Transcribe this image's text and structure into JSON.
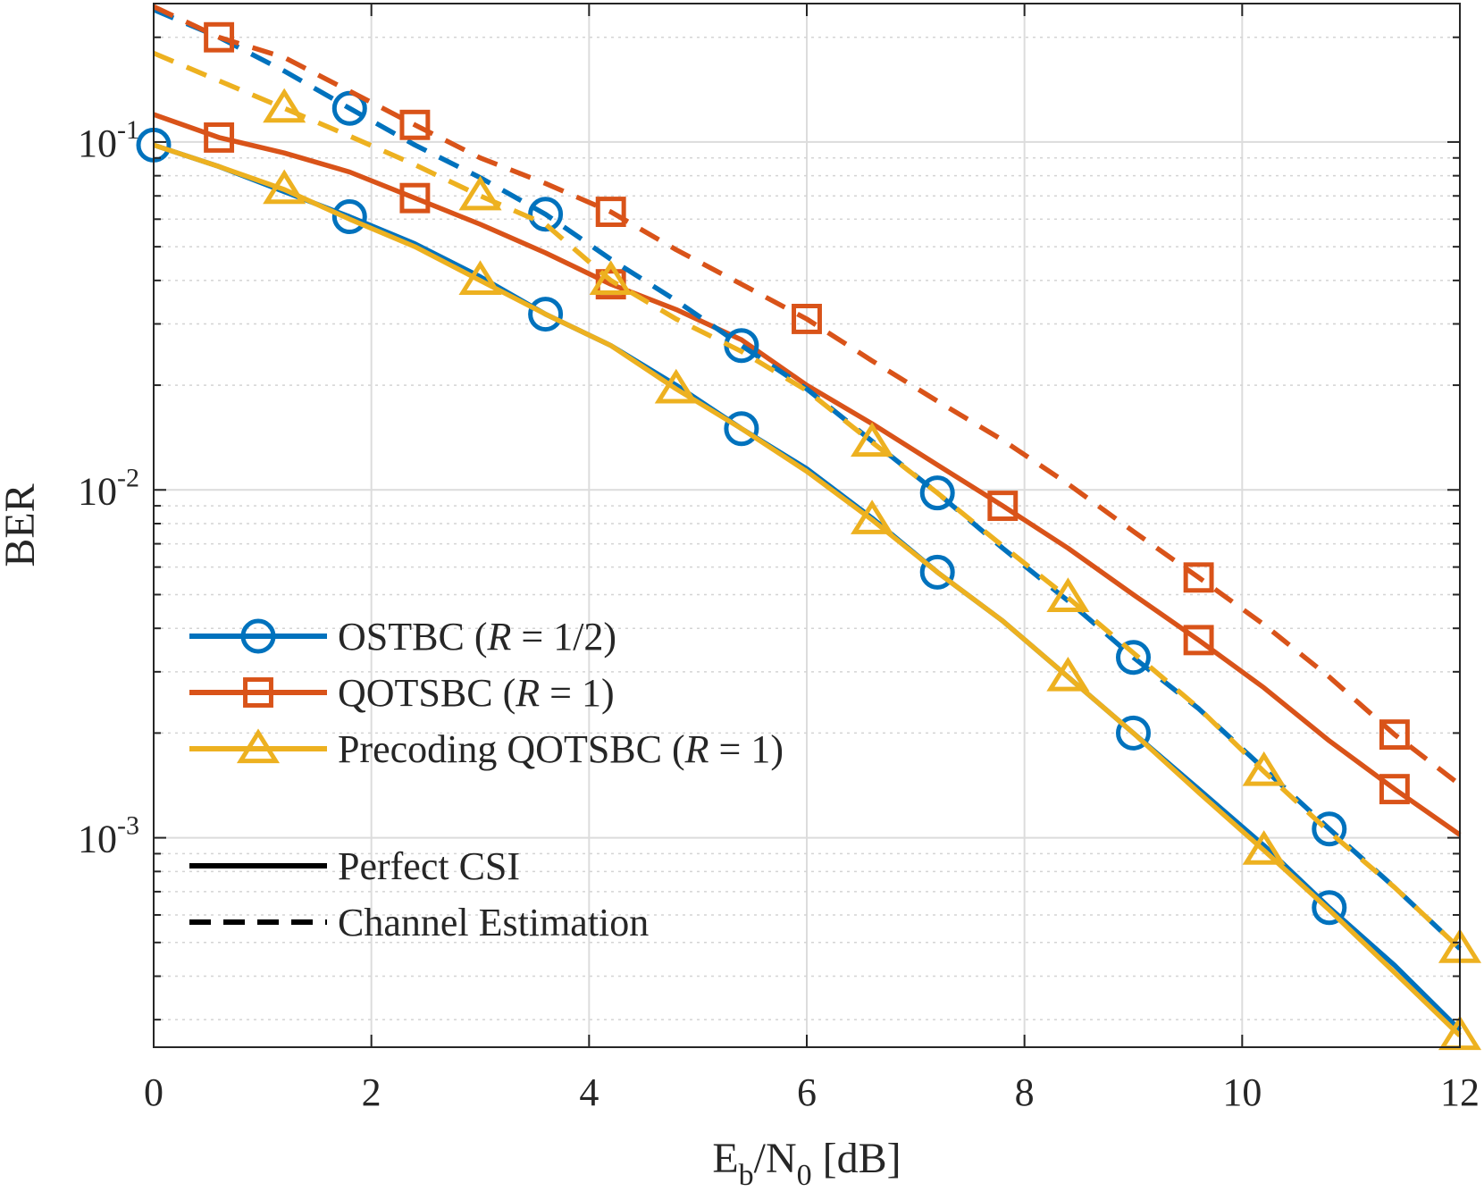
{
  "chart_data": {
    "type": "line",
    "xlabel": {
      "base1": "E",
      "sub1": "b",
      "slash": "/",
      "base2": "N",
      "sub2": "0",
      "unit": " [dB]"
    },
    "ylabel": "BER",
    "xlim": [
      0,
      12
    ],
    "ylim": [
      0.00025,
      0.25
    ],
    "yscale": "log",
    "grid": true,
    "legend_position": "lower-left",
    "xticks": [
      {
        "v": 0,
        "label": "0"
      },
      {
        "v": 2,
        "label": "2"
      },
      {
        "v": 4,
        "label": "4"
      },
      {
        "v": 6,
        "label": "6"
      },
      {
        "v": 8,
        "label": "8"
      },
      {
        "v": 10,
        "label": "10"
      },
      {
        "v": 12,
        "label": "12"
      }
    ],
    "yticks": [
      {
        "v": 0.1,
        "base": "10",
        "exp": "-1"
      },
      {
        "v": 0.01,
        "base": "10",
        "exp": "-2"
      },
      {
        "v": 0.001,
        "base": "10",
        "exp": "-3"
      }
    ],
    "x": [
      0,
      0.6,
      1.2,
      1.8,
      2.4,
      3.0,
      3.6,
      4.2,
      4.8,
      5.4,
      6.0,
      6.6,
      7.2,
      7.8,
      8.4,
      9.0,
      9.6,
      10.2,
      10.8,
      11.4,
      12.0
    ],
    "series": [
      {
        "id": "ostbc-perfect",
        "color": "#0072BD",
        "marker": "circle",
        "style": "solid",
        "marker_x": [
          0,
          1.8,
          3.6,
          5.4,
          7.2,
          9.0,
          10.8
        ],
        "values": [
          0.098,
          0.085,
          0.072,
          0.061,
          0.051,
          0.041,
          0.032,
          0.026,
          0.02,
          0.015,
          0.0115,
          0.0083,
          0.0058,
          0.0042,
          0.0029,
          0.002,
          0.00138,
          0.00095,
          0.00063,
          0.00043,
          0.00028
        ]
      },
      {
        "id": "qotsbc-perfect",
        "color": "#D95319",
        "marker": "square",
        "style": "solid",
        "marker_x": [
          0.6,
          2.4,
          4.2,
          7.8,
          9.6,
          11.4
        ],
        "values": [
          0.12,
          0.103,
          0.093,
          0.082,
          0.069,
          0.058,
          0.048,
          0.039,
          0.033,
          0.027,
          0.02,
          0.0155,
          0.0118,
          0.009,
          0.0068,
          0.005,
          0.0037,
          0.0027,
          0.0019,
          0.00138,
          0.00102
        ]
      },
      {
        "id": "precoding-perfect",
        "color": "#EDB120",
        "marker": "triangle",
        "style": "solid",
        "marker_x": [
          1.2,
          3.0,
          4.8,
          6.6,
          8.4,
          10.2,
          12.0
        ],
        "values": [
          0.098,
          0.085,
          0.073,
          0.06,
          0.05,
          0.04,
          0.032,
          0.026,
          0.0195,
          0.015,
          0.0113,
          0.0082,
          0.0058,
          0.0042,
          0.0029,
          0.002,
          0.00135,
          0.00092,
          0.00062,
          0.00041,
          0.00027
        ]
      },
      {
        "id": "ostbc-estimation",
        "color": "#0072BD",
        "marker": "circle",
        "style": "dashed",
        "marker_x": [
          1.8,
          3.6,
          5.4,
          7.2,
          9.0,
          10.8
        ],
        "values": [
          0.24,
          0.2,
          0.16,
          0.125,
          0.098,
          0.079,
          0.062,
          0.046,
          0.035,
          0.026,
          0.0195,
          0.0138,
          0.0098,
          0.0068,
          0.0048,
          0.0033,
          0.00235,
          0.00158,
          0.00106,
          0.00072,
          0.00048
        ]
      },
      {
        "id": "qotsbc-estimation",
        "color": "#D95319",
        "marker": "square",
        "style": "dashed",
        "marker_x": [
          0.6,
          2.4,
          4.2,
          6.0,
          9.6,
          11.4
        ],
        "values": [
          0.245,
          0.2,
          0.175,
          0.14,
          0.112,
          0.09,
          0.076,
          0.063,
          0.049,
          0.039,
          0.031,
          0.0235,
          0.018,
          0.0139,
          0.0104,
          0.0076,
          0.0056,
          0.0041,
          0.0029,
          0.00198,
          0.00142
        ]
      },
      {
        "id": "precoding-estimation",
        "color": "#EDB120",
        "marker": "triangle",
        "style": "dashed",
        "marker_x": [
          1.2,
          3.0,
          4.2,
          6.6,
          8.4,
          10.2,
          12.0
        ],
        "values": [
          0.18,
          0.15,
          0.125,
          0.104,
          0.086,
          0.07,
          0.058,
          0.04,
          0.031,
          0.025,
          0.0193,
          0.0137,
          0.0098,
          0.0069,
          0.0049,
          0.0034,
          0.00236,
          0.00155,
          0.00104,
          0.00072,
          0.00048
        ]
      }
    ],
    "legend": [
      {
        "kind": "series",
        "color": "#0072BD",
        "marker": "circle",
        "style": "solid",
        "label": {
          "text": "OSTBC (",
          "ital": "R",
          "rest": " = 1/2)"
        }
      },
      {
        "kind": "series",
        "color": "#D95319",
        "marker": "square",
        "style": "solid",
        "label": {
          "text": "QOTSBC (",
          "ital": "R",
          "rest": " = 1)"
        }
      },
      {
        "kind": "series",
        "color": "#EDB120",
        "marker": "triangle",
        "style": "solid",
        "label": {
          "text": "Precoding QOTSBC (",
          "ital": "R",
          "rest": " = 1)"
        }
      },
      {
        "kind": "style",
        "color": "#000000",
        "style": "solid",
        "label": {
          "text": "Perfect CSI",
          "ital": "",
          "rest": ""
        }
      },
      {
        "kind": "style",
        "color": "#000000",
        "style": "dashed",
        "label": {
          "text": "Channel Estimation",
          "ital": "",
          "rest": ""
        }
      }
    ]
  }
}
